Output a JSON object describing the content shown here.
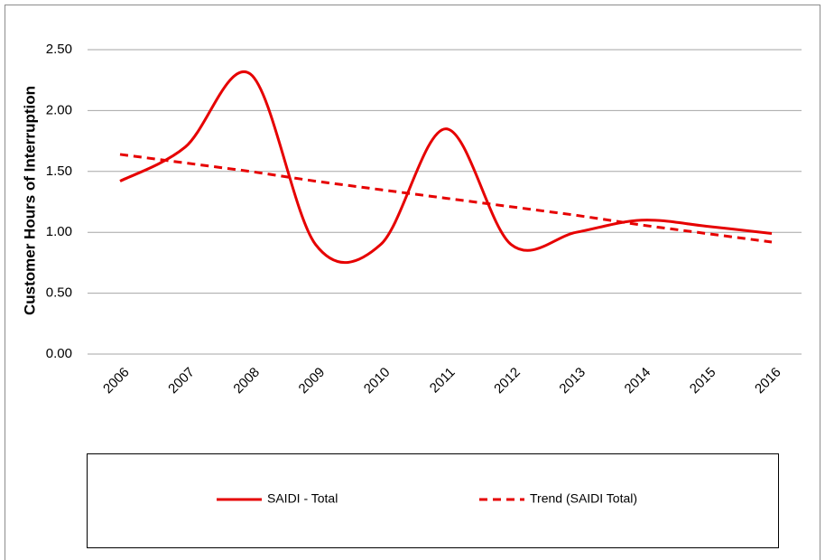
{
  "chart_data": {
    "type": "line",
    "y_axis_label": "Customer Hours of Interruption",
    "categories": [
      "2006",
      "2007",
      "2008",
      "2009",
      "2010",
      "2011",
      "2012",
      "2013",
      "2014",
      "2015",
      "2016"
    ],
    "series": [
      {
        "name": "SAIDI - Total",
        "color": "#e60000",
        "style": "solid",
        "smooth": true,
        "values": [
          1.42,
          1.7,
          2.3,
          0.9,
          0.9,
          1.85,
          0.9,
          1.0,
          1.1,
          1.05,
          0.99
        ]
      },
      {
        "name": "Trend (SAIDI Total)",
        "color": "#e60000",
        "style": "dashed",
        "smooth": false,
        "values": [
          1.64,
          1.57,
          1.5,
          1.42,
          1.35,
          1.28,
          1.21,
          1.14,
          1.06,
          0.99,
          0.92
        ]
      }
    ],
    "ylim": [
      0,
      2.5
    ],
    "yticks": [
      {
        "value": 0,
        "label": "0.00"
      },
      {
        "value": 0.5,
        "label": "0.50"
      },
      {
        "value": 1,
        "label": "1.00"
      },
      {
        "value": 1.5,
        "label": "1.50"
      },
      {
        "value": 2,
        "label": "2.00"
      },
      {
        "value": 2.5,
        "label": "2.50"
      }
    ],
    "grid": true,
    "legend": "bottom"
  }
}
